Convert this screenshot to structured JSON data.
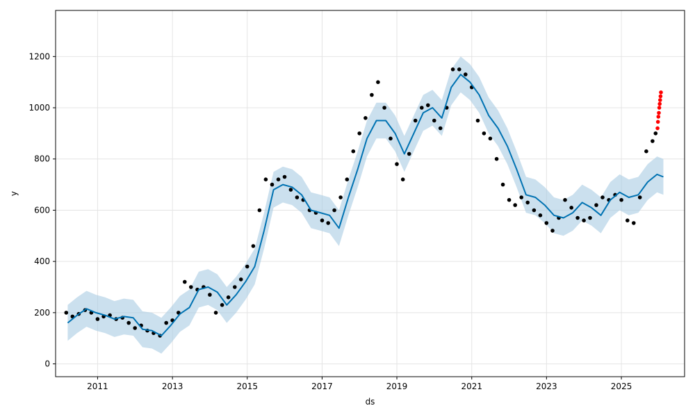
{
  "chart_data": {
    "type": "line",
    "title": "",
    "xlabel": "ds",
    "ylabel": "y",
    "xlim": [
      "2009-11-17",
      "2026-09-10"
    ],
    "ylim": [
      -50,
      1380
    ],
    "x_ticks": [
      "2011",
      "2013",
      "2015",
      "2017",
      "2019",
      "2021",
      "2023",
      "2025"
    ],
    "y_ticks": [
      0,
      200,
      400,
      600,
      800,
      1000,
      1200
    ],
    "grid": true,
    "legend": "none",
    "colors": {
      "forecast_line": "#0072B2",
      "uncertainty_band": "#A9CCE3",
      "observed_points": "#000000",
      "highlighted_points": "#FF0000"
    },
    "series": [
      {
        "role": "forecast_yhat",
        "x": [
          "2010-03-15",
          "2010-06-15",
          "2010-09-15",
          "2010-12-15",
          "2011-03-15",
          "2011-06-15",
          "2011-09-15",
          "2011-12-15",
          "2012-03-15",
          "2012-06-15",
          "2012-09-15",
          "2012-12-15",
          "2013-03-15",
          "2013-06-15",
          "2013-09-15",
          "2013-12-15",
          "2014-03-15",
          "2014-06-15",
          "2014-09-15",
          "2014-12-15",
          "2015-03-15",
          "2015-06-15",
          "2015-09-15",
          "2015-12-15",
          "2016-03-15",
          "2016-06-15",
          "2016-09-15",
          "2016-12-15",
          "2017-03-15",
          "2017-06-15",
          "2017-09-15",
          "2017-12-15",
          "2018-03-15",
          "2018-06-15",
          "2018-09-15",
          "2018-12-15",
          "2019-03-15",
          "2019-06-15",
          "2019-09-15",
          "2019-12-15",
          "2020-03-15",
          "2020-06-15",
          "2020-09-15",
          "2020-12-15",
          "2021-03-15",
          "2021-06-15",
          "2021-09-15",
          "2021-12-15",
          "2022-03-15",
          "2022-06-15",
          "2022-09-15",
          "2022-12-15",
          "2023-03-15",
          "2023-06-15",
          "2023-09-15",
          "2023-12-15",
          "2024-03-15",
          "2024-06-15",
          "2024-09-15",
          "2024-12-15",
          "2025-03-15",
          "2025-06-15",
          "2025-09-15",
          "2025-12-15",
          "2026-02-15"
        ],
        "y": [
          160,
          190,
          215,
          200,
          190,
          175,
          185,
          180,
          135,
          130,
          110,
          150,
          195,
          220,
          290,
          300,
          280,
          230,
          270,
          320,
          380,
          520,
          680,
          700,
          690,
          660,
          600,
          590,
          580,
          530,
          650,
          760,
          880,
          950,
          950,
          900,
          820,
          900,
          980,
          1000,
          960,
          1080,
          1130,
          1100,
          1050,
          970,
          920,
          850,
          760,
          660,
          650,
          620,
          580,
          570,
          590,
          630,
          610,
          580,
          640,
          670,
          650,
          660,
          710,
          740,
          730
        ],
        "yhat_lower": [
          90,
          120,
          145,
          130,
          120,
          105,
          115,
          110,
          65,
          60,
          40,
          80,
          125,
          150,
          220,
          230,
          210,
          160,
          200,
          250,
          310,
          450,
          610,
          630,
          620,
          590,
          530,
          520,
          510,
          460,
          580,
          690,
          810,
          880,
          880,
          830,
          750,
          830,
          910,
          930,
          890,
          1010,
          1060,
          1030,
          980,
          900,
          850,
          780,
          690,
          590,
          580,
          550,
          510,
          500,
          520,
          560,
          540,
          510,
          570,
          600,
          580,
          590,
          640,
          670,
          660
        ],
        "yhat_upper": [
          230,
          260,
          285,
          270,
          260,
          245,
          255,
          250,
          205,
          200,
          180,
          220,
          265,
          290,
          360,
          370,
          350,
          300,
          340,
          390,
          450,
          590,
          750,
          770,
          760,
          730,
          670,
          660,
          650,
          600,
          720,
          830,
          950,
          1020,
          1020,
          970,
          890,
          970,
          1050,
          1070,
          1030,
          1150,
          1200,
          1170,
          1120,
          1040,
          990,
          920,
          830,
          730,
          720,
          690,
          650,
          640,
          660,
          700,
          680,
          650,
          710,
          740,
          720,
          730,
          780,
          810,
          800
        ]
      },
      {
        "role": "observed",
        "x": [
          "2010-03-01",
          "2010-05-01",
          "2010-07-01",
          "2010-09-01",
          "2010-11-01",
          "2011-01-01",
          "2011-03-01",
          "2011-05-01",
          "2011-07-01",
          "2011-09-01",
          "2011-11-01",
          "2012-01-01",
          "2012-03-01",
          "2012-05-01",
          "2012-07-01",
          "2012-09-01",
          "2012-11-01",
          "2013-01-01",
          "2013-03-01",
          "2013-05-01",
          "2013-07-01",
          "2013-09-01",
          "2013-11-01",
          "2014-01-01",
          "2014-03-01",
          "2014-05-01",
          "2014-07-01",
          "2014-09-01",
          "2014-11-01",
          "2015-01-01",
          "2015-03-01",
          "2015-05-01",
          "2015-07-01",
          "2015-09-01",
          "2015-11-01",
          "2016-01-01",
          "2016-03-01",
          "2016-05-01",
          "2016-07-01",
          "2016-09-01",
          "2016-11-01",
          "2017-01-01",
          "2017-03-01",
          "2017-05-01",
          "2017-07-01",
          "2017-09-01",
          "2017-11-01",
          "2018-01-01",
          "2018-03-01",
          "2018-05-01",
          "2018-07-01",
          "2018-09-01",
          "2018-11-01",
          "2019-01-01",
          "2019-03-01",
          "2019-05-01",
          "2019-07-01",
          "2019-09-01",
          "2019-11-01",
          "2020-01-01",
          "2020-03-01",
          "2020-05-01",
          "2020-07-01",
          "2020-09-01",
          "2020-11-01",
          "2021-01-01",
          "2021-03-01",
          "2021-05-01",
          "2021-07-01",
          "2021-09-01",
          "2021-11-01",
          "2022-01-01",
          "2022-03-01",
          "2022-05-01",
          "2022-07-01",
          "2022-09-01",
          "2022-11-01",
          "2023-01-01",
          "2023-03-01",
          "2023-05-01",
          "2023-07-01",
          "2023-09-01",
          "2023-11-01",
          "2024-01-01",
          "2024-03-01",
          "2024-05-01",
          "2024-07-01",
          "2024-09-01",
          "2024-11-01",
          "2025-01-01",
          "2025-03-01",
          "2025-05-01",
          "2025-07-01",
          "2025-09-01",
          "2025-11-01",
          "2025-12-01"
        ],
        "y": [
          200,
          185,
          195,
          210,
          200,
          175,
          185,
          190,
          175,
          180,
          160,
          140,
          150,
          130,
          120,
          110,
          160,
          170,
          200,
          320,
          300,
          290,
          300,
          270,
          200,
          230,
          260,
          300,
          330,
          380,
          460,
          600,
          720,
          700,
          720,
          730,
          680,
          650,
          640,
          600,
          590,
          560,
          550,
          600,
          650,
          720,
          830,
          900,
          960,
          1050,
          1100,
          1000,
          880,
          780,
          720,
          820,
          950,
          1000,
          1010,
          950,
          920,
          1000,
          1150,
          1150,
          1130,
          1080,
          950,
          900,
          880,
          800,
          700,
          640,
          620,
          650,
          630,
          600,
          580,
          550,
          520,
          570,
          640,
          610,
          570,
          560,
          570,
          620,
          650,
          640,
          660,
          640,
          560,
          550,
          650,
          830,
          870,
          900
        ]
      },
      {
        "role": "highlighted",
        "x": [
          "2025-12-20",
          "2025-12-24",
          "2025-12-28",
          "2026-01-02",
          "2026-01-06",
          "2026-01-10",
          "2026-01-14",
          "2026-01-18",
          "2026-01-22"
        ],
        "y": [
          920,
          945,
          965,
          980,
          1000,
          1015,
          1030,
          1045,
          1060
        ]
      }
    ]
  }
}
